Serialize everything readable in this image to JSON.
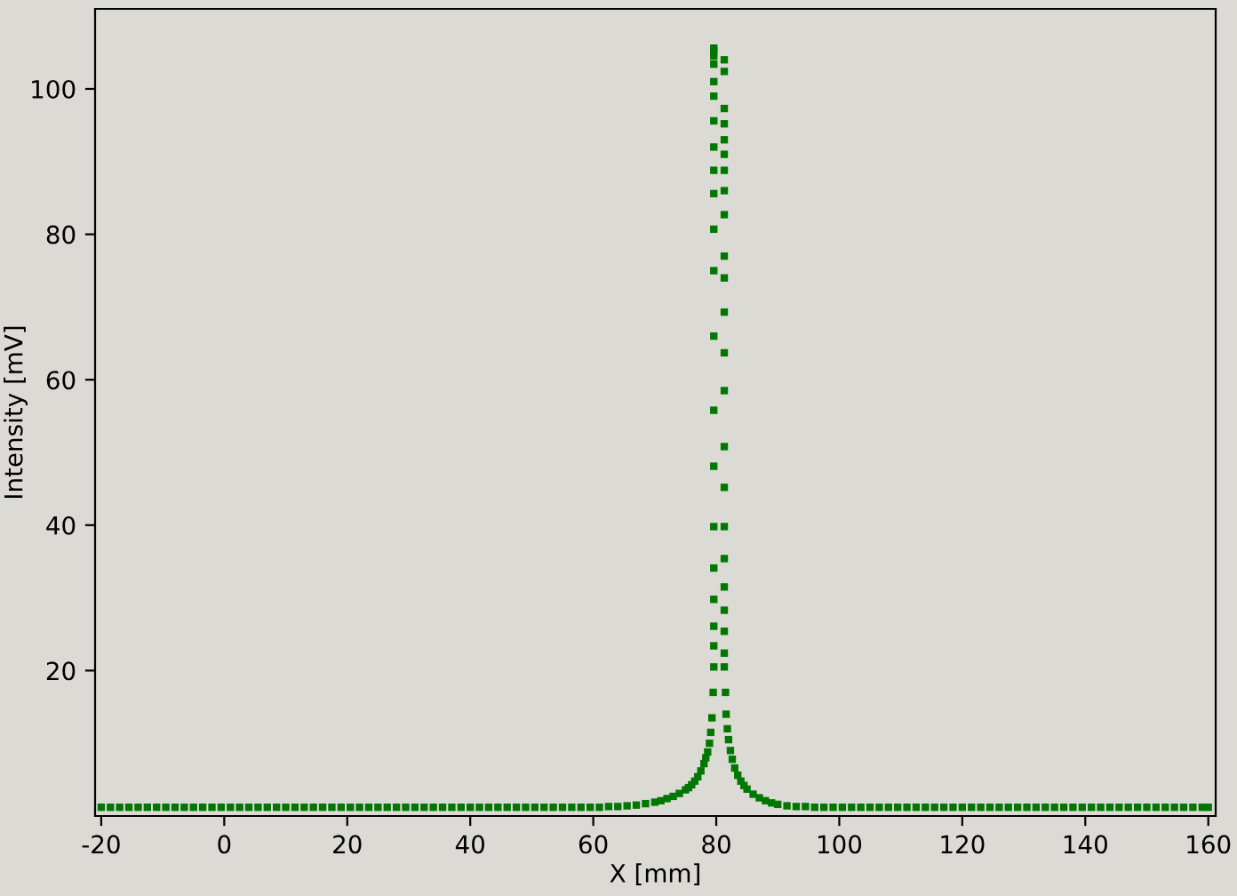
{
  "chart_data": {
    "type": "scatter",
    "xlabel": "X [mm]",
    "ylabel": "Intensity [mV]",
    "xlim": [
      -21,
      161.2
    ],
    "ylim": [
      0,
      111
    ],
    "xticks": [
      -20,
      0,
      20,
      40,
      60,
      80,
      100,
      120,
      140,
      160
    ],
    "yticks": [
      20,
      40,
      60,
      80,
      100
    ],
    "grid": false,
    "legend": false,
    "marker": "square",
    "series": [
      {
        "color": "#007700",
        "x": [
          -20,
          -18.5,
          -17,
          -15.5,
          -14,
          -12.5,
          -11,
          -9.5,
          -8,
          -6.5,
          -5,
          -3.5,
          -2,
          -0.5,
          1,
          2.5,
          4,
          5.5,
          7,
          8.5,
          10,
          11.5,
          13,
          14.5,
          16,
          17.5,
          19,
          20.5,
          22,
          23.5,
          25,
          26.5,
          28,
          29.5,
          31,
          32.5,
          34,
          35.5,
          37,
          38.5,
          40,
          41.5,
          43,
          44.5,
          46,
          47.5,
          49,
          50.5,
          52,
          53.5,
          55,
          56.5,
          58,
          59.5,
          61,
          62.5,
          64,
          65.5,
          67,
          68.5,
          70,
          71,
          72,
          73,
          74,
          75,
          75.5,
          76,
          76.5,
          77,
          77.5,
          78,
          78.3,
          78.6,
          78.9,
          79.1,
          79.3,
          79.5,
          79.6,
          79.6,
          79.6,
          79.6,
          79.6,
          79.6,
          79.6,
          79.6,
          79.6,
          79.6,
          79.6,
          79.6,
          79.6,
          79.6,
          79.6,
          79.6,
          79.6,
          79.6,
          79.6,
          79.6,
          79.6,
          81.3,
          81.3,
          81.3,
          81.3,
          81.3,
          81.3,
          81.3,
          81.3,
          81.3,
          81.3,
          81.3,
          81.3,
          81.3,
          81.3,
          81.3,
          81.3,
          81.3,
          81.3,
          81.3,
          81.3,
          81.3,
          81.3,
          81.3,
          81.5,
          81.6,
          81.8,
          82,
          82.3,
          82.6,
          83,
          83.5,
          84,
          84.5,
          85,
          86,
          87,
          88,
          89,
          90,
          91.5,
          93,
          94.5,
          96,
          97.5,
          99,
          100.5,
          102,
          103.5,
          105,
          106.5,
          108,
          109.5,
          111,
          112.5,
          114,
          115.5,
          117,
          118.5,
          120,
          121.5,
          123,
          124.5,
          126,
          127.5,
          129,
          130.5,
          132,
          133.5,
          135,
          136.5,
          138,
          139.5,
          141,
          142.5,
          144,
          145.5,
          147,
          148.5,
          150,
          151.5,
          153,
          154.5,
          156,
          157.5,
          159,
          160
        ],
        "values": [
          1.2,
          1.2,
          1.2,
          1.2,
          1.2,
          1.2,
          1.2,
          1.2,
          1.2,
          1.2,
          1.2,
          1.2,
          1.2,
          1.2,
          1.2,
          1.2,
          1.2,
          1.2,
          1.2,
          1.2,
          1.2,
          1.2,
          1.2,
          1.2,
          1.2,
          1.2,
          1.2,
          1.2,
          1.2,
          1.2,
          1.2,
          1.2,
          1.2,
          1.2,
          1.2,
          1.2,
          1.2,
          1.2,
          1.2,
          1.2,
          1.2,
          1.2,
          1.2,
          1.2,
          1.2,
          1.2,
          1.2,
          1.2,
          1.2,
          1.2,
          1.2,
          1.2,
          1.2,
          1.2,
          1.2,
          1.3,
          1.3,
          1.4,
          1.5,
          1.7,
          1.9,
          2.1,
          2.4,
          2.7,
          3.1,
          3.6,
          3.9,
          4.3,
          4.8,
          5.4,
          6.2,
          7.2,
          8,
          8.8,
          10,
          11.5,
          13.5,
          17,
          20.5,
          23.4,
          26.1,
          29.8,
          34.1,
          39.8,
          48.1,
          55.8,
          66,
          75,
          80.7,
          85.6,
          88.8,
          92,
          95.6,
          99,
          101,
          103.4,
          104.5,
          105.2,
          105.6,
          104,
          102.4,
          97.3,
          95.2,
          93,
          91,
          88.8,
          86,
          82.7,
          77,
          74,
          69.3,
          63.7,
          58.5,
          50.8,
          45.2,
          39.8,
          35.4,
          31.5,
          28.3,
          25.4,
          22.4,
          20.5,
          17,
          14,
          12,
          10.5,
          9,
          7.8,
          6.6,
          5.6,
          4.8,
          4.2,
          3.7,
          3,
          2.5,
          2.1,
          1.8,
          1.6,
          1.4,
          1.3,
          1.3,
          1.2,
          1.2,
          1.2,
          1.2,
          1.2,
          1.2,
          1.2,
          1.2,
          1.2,
          1.2,
          1.2,
          1.2,
          1.2,
          1.2,
          1.2,
          1.2,
          1.2,
          1.2,
          1.2,
          1.2,
          1.2,
          1.2,
          1.2,
          1.2,
          1.2,
          1.2,
          1.2,
          1.2,
          1.2,
          1.2,
          1.2,
          1.2,
          1.2,
          1.2,
          1.2,
          1.2,
          1.2,
          1.2,
          1.2,
          1.2,
          1.2,
          1.2,
          1.2,
          1.2
        ]
      }
    ]
  }
}
